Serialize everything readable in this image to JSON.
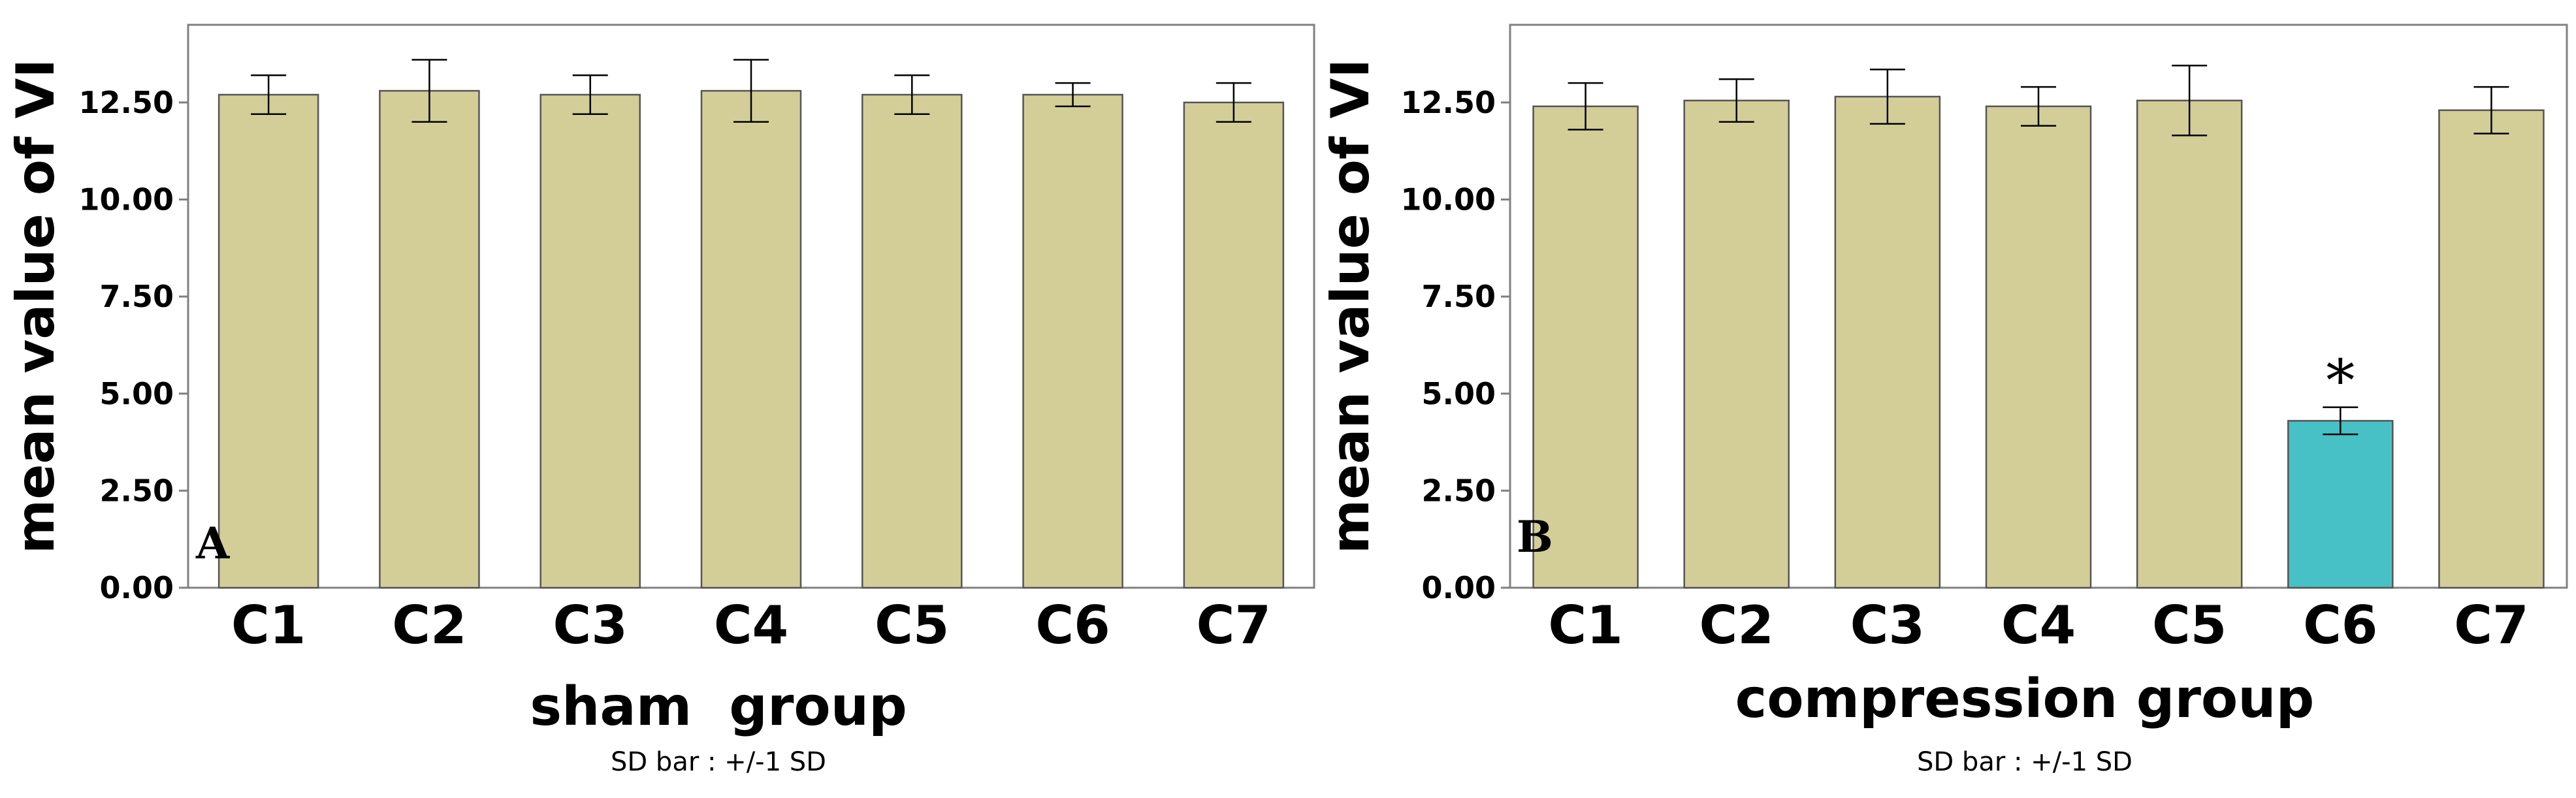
{
  "chart_data": [
    {
      "type": "bar",
      "panel": "A",
      "categories": [
        "C1",
        "C2",
        "C3",
        "C4",
        "C5",
        "C6",
        "C7"
      ],
      "values": [
        12.7,
        12.8,
        12.7,
        12.8,
        12.7,
        12.7,
        12.5
      ],
      "sd": [
        0.5,
        0.8,
        0.5,
        0.8,
        0.5,
        0.3,
        0.5
      ],
      "xlabel": "sham  group",
      "ylabel": "mean value of VI",
      "ylim": [
        0,
        14.5
      ],
      "yticks": [
        "0.00",
        "2.50",
        "5.00",
        "7.50",
        "10.00",
        "12.50"
      ],
      "note": "SD bar : +/-1 SD",
      "highlight_index": -1,
      "annotation": "",
      "bar_color": "#d3ce98",
      "highlight_color": "#47c1c5",
      "grid": false
    },
    {
      "type": "bar",
      "panel": "B",
      "categories": [
        "C1",
        "C2",
        "C3",
        "C4",
        "C5",
        "C6",
        "C7"
      ],
      "values": [
        12.4,
        12.55,
        12.65,
        12.4,
        12.55,
        4.3,
        12.3
      ],
      "sd": [
        0.6,
        0.55,
        0.7,
        0.5,
        0.9,
        0.35,
        0.6
      ],
      "xlabel": "compression group",
      "ylabel": "mean value of VI",
      "ylim": [
        0,
        14.5
      ],
      "yticks": [
        "0.00",
        "2.50",
        "5.00",
        "7.50",
        "10.00",
        "12.50"
      ],
      "note": "SD bar : +/-1 SD",
      "highlight_index": 5,
      "annotation": "*",
      "bar_color": "#d3ce98",
      "highlight_color": "#47c1c5",
      "grid": false
    }
  ]
}
